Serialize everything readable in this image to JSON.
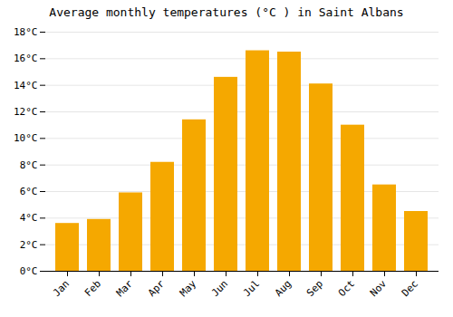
{
  "chart_data": {
    "type": "bar",
    "title": "Average monthly temperatures (°C ) in Saint Albans",
    "categories": [
      "Jan",
      "Feb",
      "Mar",
      "Apr",
      "May",
      "Jun",
      "Jul",
      "Aug",
      "Sep",
      "Oct",
      "Nov",
      "Dec"
    ],
    "values": [
      3.6,
      3.9,
      5.9,
      8.2,
      11.4,
      14.6,
      16.6,
      16.5,
      14.1,
      11.0,
      6.5,
      4.5
    ],
    "color": "#F5A800",
    "ylim": [
      0,
      18
    ],
    "yticks": [
      {
        "value": 0,
        "label": "0°C"
      },
      {
        "value": 2,
        "label": "2°C"
      },
      {
        "value": 4,
        "label": "4°C"
      },
      {
        "value": 6,
        "label": "6°C"
      },
      {
        "value": 8,
        "label": "8°C"
      },
      {
        "value": 10,
        "label": "10°C"
      },
      {
        "value": 12,
        "label": "12°C"
      },
      {
        "value": 14,
        "label": "14°C"
      },
      {
        "value": 16,
        "label": "16°C"
      },
      {
        "value": 18,
        "label": "18°C"
      }
    ],
    "grid": true
  }
}
